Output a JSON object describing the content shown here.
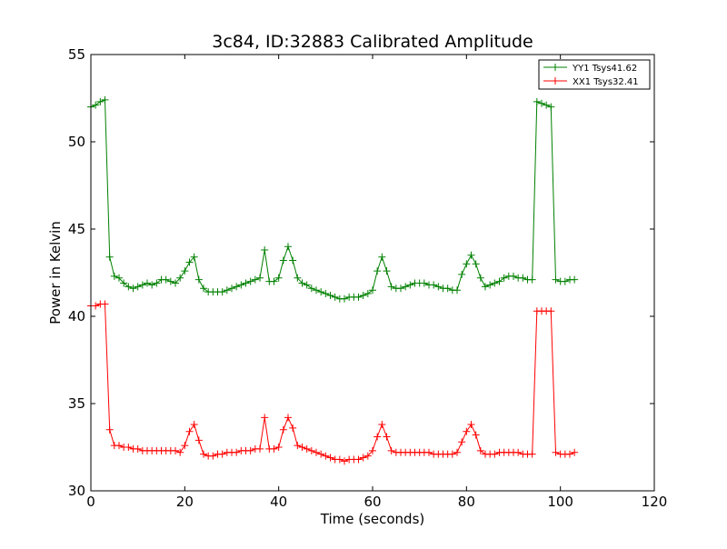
{
  "chart_data": {
    "type": "line",
    "title": "3c84, ID:32883 Calibrated Amplitude",
    "xlabel": "Time (seconds)",
    "ylabel": "Power in Kelvin",
    "xlim": [
      0,
      120
    ],
    "ylim": [
      30,
      55
    ],
    "xticks": [
      "0",
      "20",
      "40",
      "60",
      "80",
      "100",
      "120"
    ],
    "yticks": [
      "30",
      "35",
      "40",
      "45",
      "50",
      "55"
    ],
    "grid": false,
    "legend_position": "top-right",
    "x": [
      0,
      1,
      2,
      3,
      4,
      5,
      6,
      7,
      8,
      9,
      10,
      11,
      12,
      13,
      14,
      15,
      16,
      17,
      18,
      19,
      20,
      21,
      22,
      23,
      24,
      25,
      26,
      27,
      28,
      29,
      30,
      31,
      32,
      33,
      34,
      35,
      36,
      37,
      38,
      39,
      40,
      41,
      42,
      43,
      44,
      45,
      46,
      47,
      48,
      49,
      50,
      51,
      52,
      53,
      54,
      55,
      56,
      57,
      58,
      59,
      60,
      61,
      62,
      63,
      64,
      65,
      66,
      67,
      68,
      69,
      70,
      71,
      72,
      73,
      74,
      75,
      76,
      77,
      78,
      79,
      80,
      81,
      82,
      83,
      84,
      85,
      86,
      87,
      88,
      89,
      90,
      91,
      92,
      93,
      94,
      95,
      96,
      97,
      98,
      99,
      100,
      101,
      102,
      103
    ],
    "series": [
      {
        "name": "YY1 Tsys41.62",
        "color": "#008000",
        "values": [
          52.0,
          52.1,
          52.3,
          52.4,
          43.4,
          42.3,
          42.2,
          41.9,
          41.7,
          41.6,
          41.7,
          41.8,
          41.9,
          41.8,
          41.9,
          42.1,
          42.1,
          42.0,
          41.9,
          42.2,
          42.6,
          43.1,
          43.4,
          42.1,
          41.6,
          41.4,
          41.4,
          41.4,
          41.4,
          41.5,
          41.6,
          41.7,
          41.8,
          41.9,
          42.0,
          42.1,
          42.2,
          43.8,
          42.0,
          42.0,
          42.2,
          43.2,
          44.0,
          43.2,
          42.2,
          41.9,
          41.8,
          41.6,
          41.5,
          41.4,
          41.3,
          41.2,
          41.1,
          41.0,
          41.0,
          41.1,
          41.1,
          41.1,
          41.2,
          41.3,
          41.5,
          42.6,
          43.4,
          42.6,
          41.7,
          41.6,
          41.6,
          41.7,
          41.8,
          41.9,
          41.9,
          41.9,
          41.8,
          41.8,
          41.7,
          41.6,
          41.6,
          41.5,
          41.5,
          42.4,
          43.0,
          43.5,
          43.0,
          42.2,
          41.7,
          41.8,
          41.9,
          42.0,
          42.2,
          42.3,
          42.3,
          42.2,
          42.2,
          42.1,
          42.1,
          52.3,
          52.2,
          52.1,
          52.0,
          42.1,
          42.0,
          42.0,
          42.1,
          42.1
        ]
      },
      {
        "name": "XX1 Tsys32.41",
        "color": "#ff0000",
        "values": [
          40.6,
          40.6,
          40.7,
          40.7,
          33.5,
          32.6,
          32.6,
          32.5,
          32.5,
          32.4,
          32.4,
          32.3,
          32.3,
          32.3,
          32.3,
          32.3,
          32.3,
          32.3,
          32.3,
          32.2,
          32.6,
          33.4,
          33.8,
          32.9,
          32.1,
          32.0,
          32.0,
          32.1,
          32.1,
          32.2,
          32.2,
          32.2,
          32.3,
          32.3,
          32.3,
          32.4,
          32.4,
          34.2,
          32.4,
          32.4,
          32.5,
          33.5,
          34.2,
          33.6,
          32.6,
          32.5,
          32.4,
          32.3,
          32.2,
          32.1,
          32.0,
          31.9,
          31.8,
          31.8,
          31.7,
          31.8,
          31.8,
          31.8,
          31.9,
          32.0,
          32.3,
          33.1,
          33.8,
          33.1,
          32.3,
          32.2,
          32.2,
          32.2,
          32.2,
          32.2,
          32.2,
          32.2,
          32.2,
          32.1,
          32.1,
          32.1,
          32.1,
          32.1,
          32.2,
          32.8,
          33.4,
          33.8,
          33.2,
          32.3,
          32.1,
          32.1,
          32.1,
          32.2,
          32.2,
          32.2,
          32.2,
          32.2,
          32.1,
          32.1,
          32.1,
          40.3,
          40.3,
          40.3,
          40.3,
          32.2,
          32.1,
          32.1,
          32.1,
          32.2
        ]
      }
    ]
  }
}
